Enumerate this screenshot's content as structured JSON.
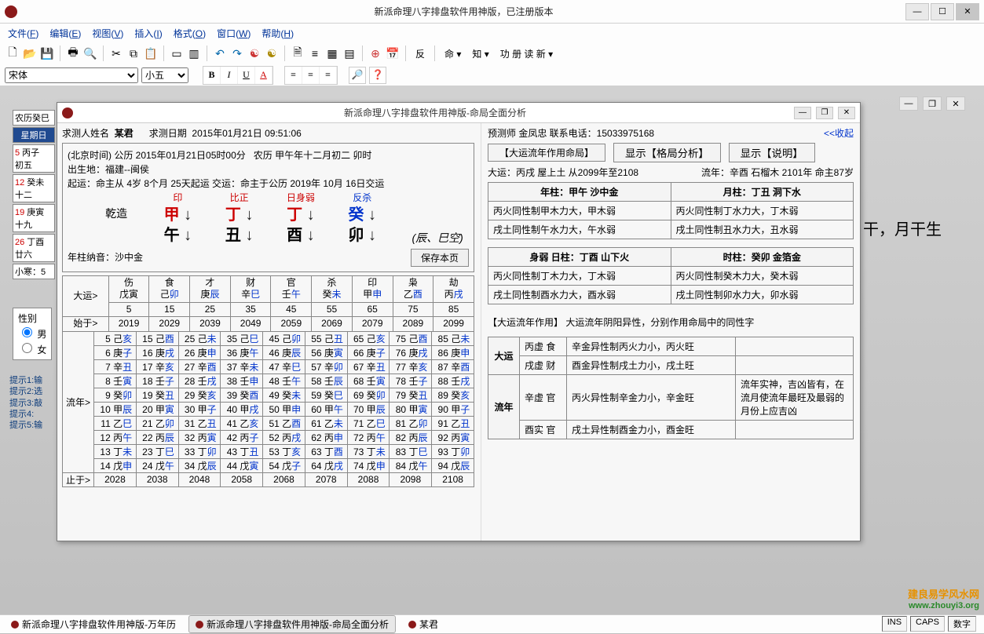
{
  "app": {
    "title": "新派命理八字排盘软件用神版，已注册版本",
    "menus": [
      "文件(F)",
      "编辑(E)",
      "视图(V)",
      "插入(I)",
      "格式(O)",
      "窗口(W)",
      "帮助(H)"
    ],
    "font_name": "宋体",
    "font_size": "小五",
    "toolbar_text": [
      "命",
      "知",
      "功 册 读 新"
    ]
  },
  "bg": {
    "side_note": "月干，月干生"
  },
  "leftcal": {
    "header": "农历癸巳",
    "week": "星期日",
    "rows": [
      {
        "d": "5",
        "l": "初五",
        "gz": "丙子"
      },
      {
        "d": "12",
        "l": "十二",
        "gz": "癸未"
      },
      {
        "d": "19",
        "l": "十九",
        "gz": "庚寅"
      },
      {
        "d": "26",
        "l": "廿六",
        "gz": "丁酉"
      }
    ],
    "solar": "小寒：5",
    "gender": {
      "label": "性别",
      "opts": [
        "男",
        "女"
      ],
      "sel": "男"
    },
    "hints": [
      "提示1:输",
      "提示2:选",
      "提示3:敲",
      "提示4:",
      "提示5:输"
    ]
  },
  "child": {
    "title": "新派命理八字排盘软件用神版-命局全面分析",
    "name_label": "求测人姓名",
    "name": "某君",
    "date_label": "求测日期",
    "date": "2015年01月21日  09:51:06",
    "predictor": "预测师    金凤忠  联系电话：15033975168",
    "collapse": "<<收起",
    "info1_a": "(北京时间)    公历  2015年01月21日05时00分",
    "info1_b": "农历  甲午年十二月初二       卯时",
    "info2": "出生地：福建--闽侯",
    "qiyun": "起运：命主从  4岁  8个月  25天起运      交运：命主于公历   2019年 10月 16日交运",
    "pillars": {
      "labels": [
        "印",
        "比正",
        "日身弱",
        "杀"
      ],
      "heaven": [
        "甲",
        "丁",
        "丁",
        "癸"
      ],
      "earth": [
        "午",
        "丑",
        "酉",
        "卯"
      ],
      "precede": "乾造",
      "fan": "反",
      "void": "(辰、巳空)"
    },
    "nayin": "年柱纳音：沙中金",
    "save_btn": "保存本页",
    "dayun": {
      "rowlabel_top": "大运>",
      "rowlabel_bot": "始于>",
      "cols": [
        {
          "god": "伤",
          "gz": "戊寅",
          "age": "5",
          "yr": "2019"
        },
        {
          "god": "食",
          "gz": "己卯",
          "age": "15",
          "yr": "2029"
        },
        {
          "god": "才",
          "gz": "庚辰",
          "age": "25",
          "yr": "2039"
        },
        {
          "god": "财",
          "gz": "辛巳",
          "age": "35",
          "yr": "2049"
        },
        {
          "god": "官",
          "gz": "壬午",
          "age": "45",
          "yr": "2059"
        },
        {
          "god": "杀",
          "gz": "癸未",
          "age": "55",
          "yr": "2069"
        },
        {
          "god": "印",
          "gz": "甲申",
          "age": "65",
          "yr": "2079"
        },
        {
          "god": "枭",
          "gz": "乙酉",
          "age": "75",
          "yr": "2089"
        },
        {
          "god": "劫",
          "gz": "丙戌",
          "age": "85",
          "yr": "2099"
        }
      ]
    },
    "liunian": {
      "head": "流年>",
      "foot": "止于>",
      "grid": [
        [
          [
            "5",
            "己亥"
          ],
          [
            "15",
            "己酉"
          ],
          [
            "25",
            "己未"
          ],
          [
            "35",
            "己巳"
          ],
          [
            "45",
            "己卯"
          ],
          [
            "55",
            "己丑"
          ],
          [
            "65",
            "己亥"
          ],
          [
            "75",
            "己酉"
          ],
          [
            "85",
            "己未"
          ]
        ],
        [
          [
            "6",
            "庚子"
          ],
          [
            "16",
            "庚戌"
          ],
          [
            "26",
            "庚申"
          ],
          [
            "36",
            "庚午"
          ],
          [
            "46",
            "庚辰"
          ],
          [
            "56",
            "庚寅"
          ],
          [
            "66",
            "庚子"
          ],
          [
            "76",
            "庚戌"
          ],
          [
            "86",
            "庚申"
          ]
        ],
        [
          [
            "7",
            "辛丑"
          ],
          [
            "17",
            "辛亥"
          ],
          [
            "27",
            "辛酉"
          ],
          [
            "37",
            "辛未"
          ],
          [
            "47",
            "辛巳"
          ],
          [
            "57",
            "辛卯"
          ],
          [
            "67",
            "辛丑"
          ],
          [
            "77",
            "辛亥"
          ],
          [
            "87",
            "辛酉"
          ]
        ],
        [
          [
            "8",
            "壬寅"
          ],
          [
            "18",
            "壬子"
          ],
          [
            "28",
            "壬戌"
          ],
          [
            "38",
            "壬申"
          ],
          [
            "48",
            "壬午"
          ],
          [
            "58",
            "壬辰"
          ],
          [
            "68",
            "壬寅"
          ],
          [
            "78",
            "壬子"
          ],
          [
            "88",
            "壬戌"
          ]
        ],
        [
          [
            "9",
            "癸卯"
          ],
          [
            "19",
            "癸丑"
          ],
          [
            "29",
            "癸亥"
          ],
          [
            "39",
            "癸酉"
          ],
          [
            "49",
            "癸未"
          ],
          [
            "59",
            "癸巳"
          ],
          [
            "69",
            "癸卯"
          ],
          [
            "79",
            "癸丑"
          ],
          [
            "89",
            "癸亥"
          ]
        ],
        [
          [
            "10",
            "甲辰"
          ],
          [
            "20",
            "甲寅"
          ],
          [
            "30",
            "甲子"
          ],
          [
            "40",
            "甲戌"
          ],
          [
            "50",
            "甲申"
          ],
          [
            "60",
            "甲午"
          ],
          [
            "70",
            "甲辰"
          ],
          [
            "80",
            "甲寅"
          ],
          [
            "90",
            "甲子"
          ]
        ],
        [
          [
            "11",
            "乙巳"
          ],
          [
            "21",
            "乙卯"
          ],
          [
            "31",
            "乙丑"
          ],
          [
            "41",
            "乙亥"
          ],
          [
            "51",
            "乙酉"
          ],
          [
            "61",
            "乙未"
          ],
          [
            "71",
            "乙巳"
          ],
          [
            "81",
            "乙卯"
          ],
          [
            "91",
            "乙丑"
          ]
        ],
        [
          [
            "12",
            "丙午"
          ],
          [
            "22",
            "丙辰"
          ],
          [
            "32",
            "丙寅"
          ],
          [
            "42",
            "丙子"
          ],
          [
            "52",
            "丙戌"
          ],
          [
            "62",
            "丙申"
          ],
          [
            "72",
            "丙午"
          ],
          [
            "82",
            "丙辰"
          ],
          [
            "92",
            "丙寅"
          ]
        ],
        [
          [
            "13",
            "丁未"
          ],
          [
            "23",
            "丁巳"
          ],
          [
            "33",
            "丁卯"
          ],
          [
            "43",
            "丁丑"
          ],
          [
            "53",
            "丁亥"
          ],
          [
            "63",
            "丁酉"
          ],
          [
            "73",
            "丁未"
          ],
          [
            "83",
            "丁巳"
          ],
          [
            "93",
            "丁卯"
          ]
        ],
        [
          [
            "14",
            "戊申"
          ],
          [
            "24",
            "戊午"
          ],
          [
            "34",
            "戊辰"
          ],
          [
            "44",
            "戊寅"
          ],
          [
            "54",
            "戊子"
          ],
          [
            "64",
            "戊戌"
          ],
          [
            "74",
            "戊申"
          ],
          [
            "84",
            "戊午"
          ],
          [
            "94",
            "戊辰"
          ]
        ]
      ],
      "footyears": [
        "2028",
        "2038",
        "2048",
        "2058",
        "2068",
        "2078",
        "2088",
        "2098",
        "2108"
      ]
    }
  },
  "right": {
    "head_btn_bracket": "【大运流年作用命局】",
    "btn1": "显示【格局分析】",
    "btn2": "显示【说明】",
    "dyline": "大运：丙戌  屋上土    从2099年至2108",
    "lnline": "流年：辛酉  石榴木  2101年    命主87岁",
    "tbl1": {
      "h1": "年柱：甲午  沙中金",
      "h2": "月柱：丁丑  洞下水",
      "r1a": "丙火同性制甲木力大，甲木弱",
      "r1b": "丙火同性制丁水力大，丁木弱",
      "r2a": "戌土同性制午水力大，午水弱",
      "r2b": "戌土同性制丑水力大，丑水弱"
    },
    "tbl2": {
      "h1": "身弱  日柱：丁酉  山下火",
      "h2": "时柱：癸卯  金箔金",
      "r1a": "丙火同性制丁木力大，丁木弱",
      "r1b": "丙火同性制癸木力大，癸木弱",
      "r2a": "戌土同性制酉水力大，酉水弱",
      "r2b": "戌土同性制卯水力大，卯水弱"
    },
    "sec2": "【大运流年作用】  大运流年阴阳异性，分别作用命局中的同性字",
    "tbl3": [
      {
        "span": "大运",
        "rows": [
          [
            "丙虚 食",
            "辛金异性制丙火力小，丙火旺",
            ""
          ],
          [
            "戌虚 财",
            "酉金异性制戌土力小，戌土旺",
            ""
          ]
        ]
      },
      {
        "span": "流年",
        "rows": [
          [
            "辛虚 官",
            "丙火异性制辛金力小，辛金旺",
            "流年实神，吉凶皆有，在流月使流年最旺及最弱的月份上应吉凶"
          ],
          [
            "酉实 官",
            "戌土异性制酉金力小，酉金旺",
            ""
          ]
        ]
      }
    ]
  },
  "taskbar": {
    "tabs": [
      {
        "label": "新派命理八字排盘软件用神版-万年历",
        "active": false
      },
      {
        "label": "新派命理八字排盘软件用神版-命局全面分析",
        "active": true
      },
      {
        "label": "某君",
        "active": false
      }
    ],
    "status": [
      "INS",
      "CAPS",
      "数字"
    ]
  },
  "watermark": {
    "a": "建良易学风水网",
    "b": "www.zhouyi3.org"
  }
}
